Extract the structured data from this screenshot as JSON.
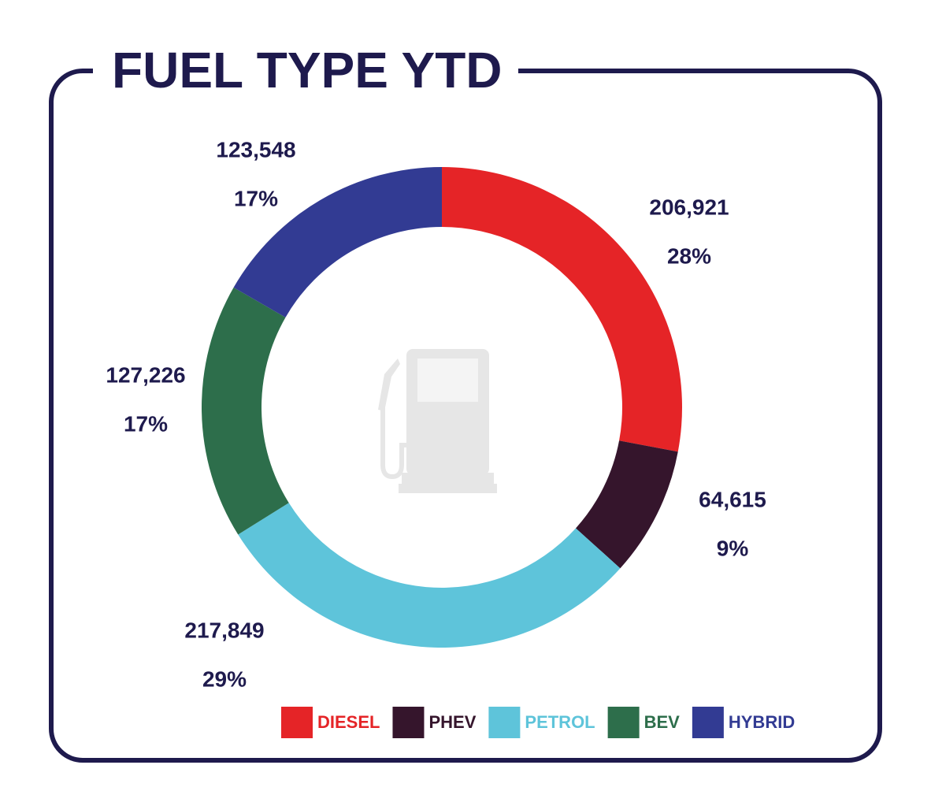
{
  "chart_data": {
    "type": "donut",
    "title": "FUEL TYPE YTD",
    "categories": [
      "DIESEL",
      "PHEV",
      "PETROL",
      "BEV",
      "HYBRID"
    ],
    "values": [
      206921,
      64615,
      217849,
      127226,
      123548
    ],
    "value_labels": [
      "206,921",
      "64,615",
      "217,849",
      "127,226",
      "123,548"
    ],
    "percent_labels": [
      "28%",
      "9%",
      "29%",
      "17%",
      "17%"
    ],
    "colors": [
      "#e52427",
      "#35152c",
      "#5ec4da",
      "#2d6e4b",
      "#323b93"
    ],
    "legend": "bottom-right"
  }
}
